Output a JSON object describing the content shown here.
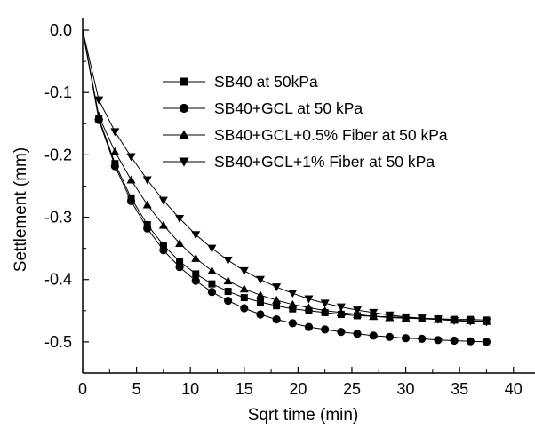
{
  "chart_data": {
    "type": "line",
    "title": "",
    "xlabel": "Sqrt time (min)",
    "ylabel": "Settlement (mm)",
    "xlim": [
      0,
      42
    ],
    "ylim": [
      -0.55,
      0.02
    ],
    "x_ticks": [
      0,
      5,
      10,
      15,
      20,
      25,
      30,
      35,
      40
    ],
    "y_ticks": [
      0.0,
      -0.1,
      -0.2,
      -0.3,
      -0.4,
      -0.5
    ],
    "x_tick_labels": [
      "0",
      "5",
      "10",
      "15",
      "20",
      "25",
      "30",
      "35",
      "40"
    ],
    "y_tick_labels": [
      "0.0",
      "-0.1",
      "-0.2",
      "-0.3",
      "-0.4",
      "-0.5"
    ],
    "grid": false,
    "legend_position": "top-right",
    "series": [
      {
        "name": "SB40 at 50kPa",
        "marker": "square",
        "color": "#000000",
        "x": [
          0,
          1.5,
          3,
          4.5,
          6,
          7.5,
          9,
          10.5,
          12,
          13.5,
          15,
          16.5,
          18,
          19.5,
          21,
          22.5,
          24,
          25.5,
          27,
          28.5,
          30,
          31.5,
          33,
          34.5,
          36,
          37.5
        ],
        "y": [
          0,
          -0.141,
          -0.214,
          -0.269,
          -0.312,
          -0.345,
          -0.371,
          -0.391,
          -0.407,
          -0.419,
          -0.429,
          -0.436,
          -0.442,
          -0.447,
          -0.45,
          -0.453,
          -0.456,
          -0.458,
          -0.459,
          -0.46,
          -0.461,
          -0.462,
          -0.463,
          -0.464,
          -0.464,
          -0.465
        ]
      },
      {
        "name": "SB40+GCL at 50 kPa",
        "marker": "circle",
        "color": "#000000",
        "x": [
          0,
          1.5,
          3,
          4.5,
          6,
          7.5,
          9,
          10.5,
          12,
          13.5,
          15,
          16.5,
          18,
          19.5,
          21,
          22.5,
          24,
          25.5,
          27,
          28.5,
          30,
          31.5,
          33,
          34.5,
          36,
          37.5
        ],
        "y": [
          0,
          -0.144,
          -0.218,
          -0.274,
          -0.318,
          -0.353,
          -0.38,
          -0.402,
          -0.42,
          -0.434,
          -0.446,
          -0.456,
          -0.464,
          -0.47,
          -0.476,
          -0.48,
          -0.484,
          -0.487,
          -0.49,
          -0.492,
          -0.494,
          -0.495,
          -0.497,
          -0.498,
          -0.499,
          -0.5
        ]
      },
      {
        "name": "SB40+GCL+0.5% Fiber at 50 kPa",
        "marker": "triangle-up",
        "color": "#000000",
        "x": [
          0,
          1.5,
          3,
          4.5,
          6,
          7.5,
          9,
          10.5,
          12,
          13.5,
          15,
          16.5,
          18,
          19.5,
          21,
          22.5,
          24,
          25.5,
          27,
          28.5,
          30,
          31.5,
          33,
          34.5,
          36,
          37.5
        ],
        "y": [
          0,
          -0.138,
          -0.195,
          -0.24,
          -0.28,
          -0.313,
          -0.342,
          -0.366,
          -0.386,
          -0.402,
          -0.415,
          -0.425,
          -0.433,
          -0.44,
          -0.445,
          -0.45,
          -0.453,
          -0.456,
          -0.459,
          -0.461,
          -0.462,
          -0.463,
          -0.464,
          -0.465,
          -0.466,
          -0.467
        ]
      },
      {
        "name": "SB40+GCL+1% Fiber at 50 kPa",
        "marker": "triangle-down",
        "color": "#000000",
        "x": [
          0,
          1.5,
          3,
          4.5,
          6,
          7.5,
          9,
          10.5,
          12,
          13.5,
          15,
          16.5,
          18,
          19.5,
          21,
          22.5,
          24,
          25.5,
          27,
          28.5,
          30,
          31.5,
          33,
          34.5,
          36,
          37.5
        ],
        "y": [
          0,
          -0.112,
          -0.163,
          -0.203,
          -0.24,
          -0.273,
          -0.302,
          -0.328,
          -0.35,
          -0.369,
          -0.386,
          -0.4,
          -0.412,
          -0.422,
          -0.431,
          -0.438,
          -0.444,
          -0.449,
          -0.453,
          -0.457,
          -0.46,
          -0.462,
          -0.464,
          -0.466,
          -0.467,
          -0.468
        ]
      }
    ]
  }
}
